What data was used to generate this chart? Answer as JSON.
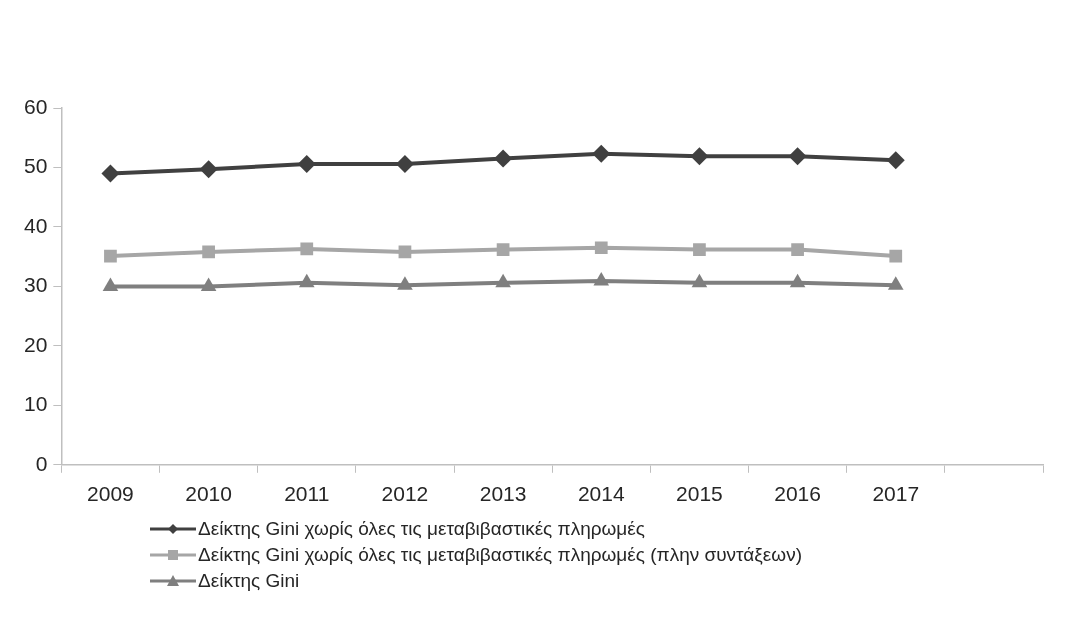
{
  "chart_data": {
    "type": "line",
    "categories": [
      "2009",
      "2010",
      "2011",
      "2012",
      "2013",
      "2014",
      "2015",
      "2016",
      "2017",
      null
    ],
    "ylim": [
      0,
      60
    ],
    "yticks": [
      0,
      10,
      20,
      30,
      40,
      50,
      60
    ],
    "grid": false,
    "legend": "bottom",
    "line_style": "solid",
    "series": [
      {
        "name": "Δείκτης Gini χωρίς όλες τις μεταβιβαστικές πληρωμές",
        "color": "#404040",
        "marker": "diamond",
        "values": [
          49.0,
          49.7,
          50.6,
          50.6,
          51.5,
          52.3,
          51.9,
          51.9,
          51.2,
          null
        ]
      },
      {
        "name": "Δείκτης Gini χωρίς όλες τις μεταβιβαστικές πληρωμές (πλην συντάξεων)",
        "color": "#a6a6a6",
        "marker": "square",
        "values": [
          35.1,
          35.8,
          36.3,
          35.8,
          36.2,
          36.5,
          36.2,
          36.2,
          35.1,
          null
        ]
      },
      {
        "name": "Δείκτης Gini",
        "color": "#7f7f7f",
        "marker": "triangle",
        "values": [
          30.0,
          30.0,
          30.6,
          30.2,
          30.6,
          30.9,
          30.6,
          30.6,
          30.2,
          null
        ]
      }
    ]
  }
}
